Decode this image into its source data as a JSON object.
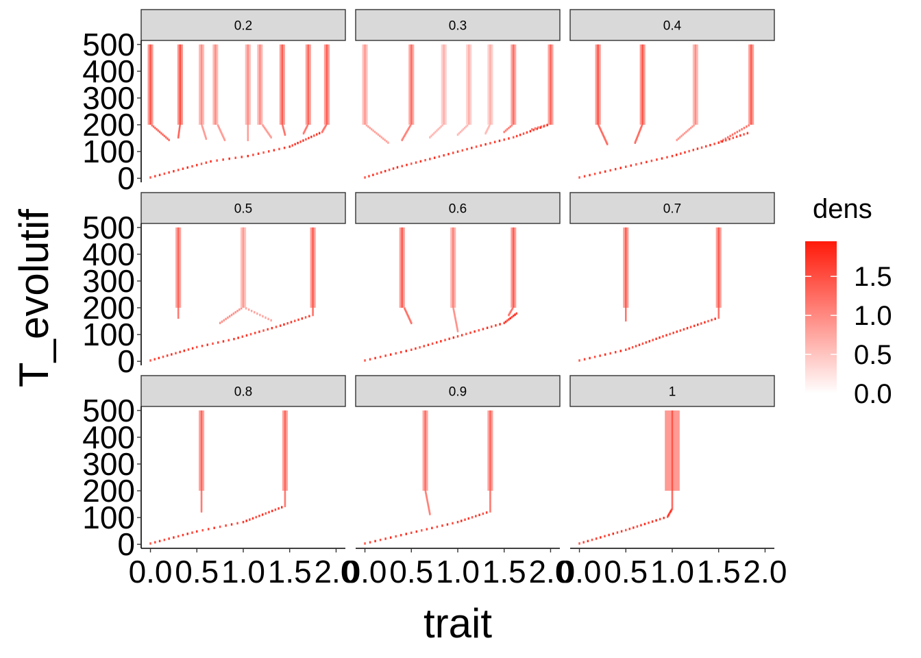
{
  "chart_data": {
    "type": "heatmap",
    "facet_variable": "",
    "xlabel": "trait",
    "ylabel": "T_evolutif",
    "x_ticks": [
      "0.0",
      "0.5",
      "1.0",
      "1.5",
      "2.0"
    ],
    "y_ticks": [
      "0",
      "100",
      "200",
      "300",
      "400",
      "500"
    ],
    "xlim": [
      -0.1,
      2.1
    ],
    "ylim": [
      -15,
      515
    ],
    "legend": {
      "title": "dens",
      "ticks": [
        "0.0",
        "0.5",
        "1.0",
        "1.5"
      ],
      "range": [
        0,
        1.95
      ],
      "low_color": "#ffffff",
      "high_color": "#ff1a0a",
      "placement": "right"
    },
    "facets": [
      {
        "label": "0.2",
        "trunk": [
          [
            0.0,
            0
          ],
          [
            0.3,
            28
          ],
          [
            0.65,
            60
          ],
          [
            1.05,
            80
          ],
          [
            1.5,
            115
          ],
          [
            1.85,
            170
          ]
        ],
        "branches": [
          {
            "path": [
              [
                0.2,
                140
              ],
              [
                0.0,
                200
              ]
            ],
            "final": 0.0,
            "strength": 0.55
          },
          {
            "path": [
              [
                0.3,
                150
              ],
              [
                0.32,
                200
              ]
            ],
            "final": 0.32,
            "strength": 0.6
          },
          {
            "path": [
              [
                0.6,
                145
              ],
              [
                0.55,
                200
              ]
            ],
            "final": 0.55,
            "strength": 0.25
          },
          {
            "path": [
              [
                0.8,
                140
              ],
              [
                0.72,
                200
              ]
            ],
            "final": 0.7,
            "strength": 0.25
          },
          {
            "path": [
              [
                1.05,
                140
              ],
              [
                1.05,
                200
              ]
            ],
            "final": 1.05,
            "strength": 0.25
          },
          {
            "path": [
              [
                1.3,
                150
              ],
              [
                1.2,
                200
              ]
            ],
            "final": 1.18,
            "strength": 0.25
          },
          {
            "path": [
              [
                1.45,
                160
              ],
              [
                1.42,
                200
              ]
            ],
            "final": 1.42,
            "strength": 0.5
          },
          {
            "path": [
              [
                1.65,
                165
              ],
              [
                1.7,
                200
              ]
            ],
            "final": 1.7,
            "strength": 0.45
          },
          {
            "path": [
              [
                1.85,
                170
              ],
              [
                1.9,
                200
              ]
            ],
            "final": 1.9,
            "strength": 0.5
          }
        ]
      },
      {
        "label": "0.3",
        "trunk": [
          [
            0.0,
            0
          ],
          [
            0.35,
            38
          ],
          [
            0.8,
            78
          ],
          [
            1.2,
            115
          ],
          [
            1.6,
            150
          ],
          [
            2.0,
            200
          ]
        ],
        "branches": [
          {
            "path": [
              [
                0.25,
                130
              ],
              [
                0.0,
                200
              ]
            ],
            "final": 0.0,
            "strength": 0.2
          },
          {
            "path": [
              [
                0.4,
                140
              ],
              [
                0.5,
                200
              ]
            ],
            "final": 0.5,
            "strength": 0.4
          },
          {
            "path": [
              [
                0.7,
                150
              ],
              [
                0.85,
                200
              ]
            ],
            "final": 0.85,
            "strength": 0.12
          },
          {
            "path": [
              [
                1.0,
                160
              ],
              [
                1.12,
                200
              ]
            ],
            "final": 1.12,
            "strength": 0.12
          },
          {
            "path": [
              [
                1.3,
                165
              ],
              [
                1.35,
                200
              ]
            ],
            "final": 1.35,
            "strength": 0.12
          },
          {
            "path": [
              [
                1.5,
                170
              ],
              [
                1.6,
                200
              ]
            ],
            "final": 1.6,
            "strength": 0.4
          },
          {
            "path": [
              [
                1.8,
                180
              ],
              [
                2.0,
                200
              ]
            ],
            "final": 2.0,
            "strength": 0.45
          }
        ]
      },
      {
        "label": "0.4",
        "trunk": [
          [
            0.0,
            0
          ],
          [
            0.5,
            40
          ],
          [
            1.0,
            80
          ],
          [
            1.5,
            130
          ],
          [
            1.85,
            170
          ]
        ],
        "branches": [
          {
            "path": [
              [
                0.3,
                125
              ],
              [
                0.2,
                200
              ]
            ],
            "final": 0.2,
            "strength": 0.55
          },
          {
            "path": [
              [
                0.6,
                130
              ],
              [
                0.68,
                200
              ]
            ],
            "final": 0.68,
            "strength": 0.55
          },
          {
            "path": [
              [
                1.05,
                140
              ],
              [
                1.25,
                200
              ]
            ],
            "final": 1.25,
            "strength": 0.25
          },
          {
            "path": [
              [
                1.5,
                130
              ],
              [
                1.85,
                200
              ]
            ],
            "final": 1.85,
            "strength": 0.5
          }
        ]
      },
      {
        "label": "0.5",
        "trunk": [
          [
            0.0,
            0
          ],
          [
            0.5,
            50
          ],
          [
            0.9,
            80
          ],
          [
            1.4,
            130
          ],
          [
            1.75,
            170
          ]
        ],
        "branches": [
          {
            "path": [
              [
                0.3,
                160
              ],
              [
                0.3,
                200
              ]
            ],
            "final": 0.3,
            "strength": 0.45
          },
          {
            "path": [
              [
                0.75,
                140
              ],
              [
                1.0,
                200
              ]
            ],
            "final": 1.0,
            "strength": 0.3
          },
          {
            "path": [
              [
                1.3,
                150
              ],
              [
                1.0,
                200
              ]
            ],
            "final": 1.0,
            "strength": 0.2
          },
          {
            "path": [
              [
                1.75,
                170
              ],
              [
                1.75,
                200
              ]
            ],
            "final": 1.75,
            "strength": 0.5
          }
        ]
      },
      {
        "label": "0.6",
        "trunk": [
          [
            0.0,
            0
          ],
          [
            0.5,
            40
          ],
          [
            1.0,
            90
          ],
          [
            1.5,
            140
          ],
          [
            1.65,
            180
          ]
        ],
        "branches": [
          {
            "path": [
              [
                0.5,
                140
              ],
              [
                0.42,
                200
              ]
            ],
            "final": 0.4,
            "strength": 0.5
          },
          {
            "path": [
              [
                1.0,
                110
              ],
              [
                0.95,
                200
              ]
            ],
            "final": 0.95,
            "strength": 0.3
          },
          {
            "path": [
              [
                1.55,
                170
              ],
              [
                1.6,
                200
              ]
            ],
            "final": 1.6,
            "strength": 0.5
          }
        ]
      },
      {
        "label": "0.7",
        "trunk": [
          [
            0.0,
            0
          ],
          [
            0.5,
            40
          ],
          [
            0.9,
            90
          ],
          [
            1.5,
            160
          ]
        ],
        "branches": [
          {
            "path": [
              [
                0.5,
                150
              ],
              [
                0.5,
                200
              ]
            ],
            "final": 0.5,
            "strength": 0.5
          },
          {
            "path": [
              [
                1.5,
                160
              ],
              [
                1.5,
                200
              ]
            ],
            "final": 1.5,
            "strength": 0.5
          }
        ]
      },
      {
        "label": "0.8",
        "trunk": [
          [
            0.0,
            0
          ],
          [
            0.5,
            45
          ],
          [
            1.0,
            80
          ],
          [
            1.45,
            140
          ]
        ],
        "branches": [
          {
            "path": [
              [
                0.55,
                120
              ],
              [
                0.55,
                200
              ]
            ],
            "final": 0.55,
            "strength": 0.45
          },
          {
            "path": [
              [
                1.45,
                140
              ],
              [
                1.45,
                200
              ]
            ],
            "final": 1.45,
            "strength": 0.45
          }
        ]
      },
      {
        "label": "0.9",
        "trunk": [
          [
            0.0,
            0
          ],
          [
            0.5,
            40
          ],
          [
            1.0,
            80
          ],
          [
            1.35,
            120
          ]
        ],
        "branches": [
          {
            "path": [
              [
                0.7,
                110
              ],
              [
                0.65,
                200
              ]
            ],
            "final": 0.65,
            "strength": 0.4
          },
          {
            "path": [
              [
                1.35,
                120
              ],
              [
                1.35,
                200
              ]
            ],
            "final": 1.35,
            "strength": 0.45
          }
        ]
      },
      {
        "label": "1",
        "trunk": [
          [
            0.0,
            0
          ],
          [
            0.5,
            50
          ],
          [
            0.95,
            100
          ],
          [
            1.0,
            130
          ]
        ],
        "branches": [
          {
            "path": [
              [
                1.0,
                130
              ],
              [
                1.0,
                200
              ]
            ],
            "final": 1.0,
            "strength": 0.55,
            "width": 0.08
          }
        ]
      }
    ]
  }
}
